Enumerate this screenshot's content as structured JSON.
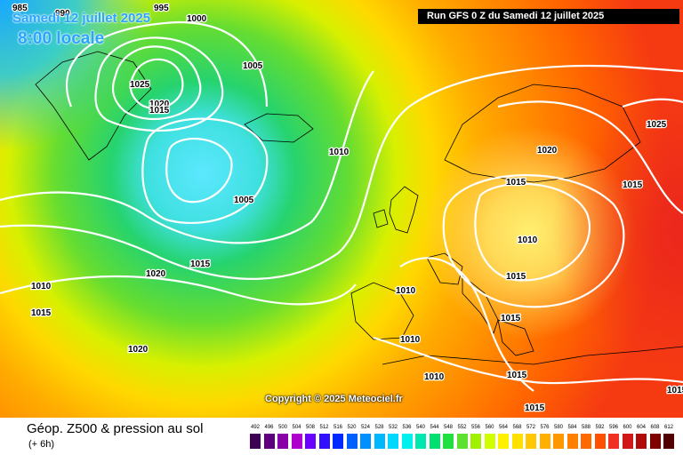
{
  "header": {
    "date": "Samedi 12 juillet 2025",
    "time": "8:00 locale",
    "run": "Run GFS 0 Z du Samedi 12 juillet 2025"
  },
  "footer": {
    "title": "Géop. Z500 & pression au sol",
    "subtitle": "(+ 6h)",
    "copyright": "Copyright © 2025 Meteociel.fr"
  },
  "isobar_labels": [
    "985",
    "990",
    "995",
    "1000",
    "1005",
    "1025",
    "1020",
    "1015",
    "1005",
    "1010",
    "1020",
    "1015",
    "1010",
    "1015",
    "1020",
    "1010",
    "1015",
    "1010",
    "1010",
    "1015",
    "1010",
    "1015",
    "1015",
    "1025",
    "1015",
    "1015",
    "1020",
    "1015"
  ],
  "legend": {
    "ticks": [
      "492",
      "496",
      "500",
      "504",
      "508",
      "512",
      "516",
      "520",
      "524",
      "528",
      "532",
      "536",
      "540",
      "544",
      "548",
      "552",
      "556",
      "560",
      "564",
      "568",
      "572",
      "576",
      "580",
      "584",
      "588",
      "592",
      "596",
      "600",
      "604",
      "608",
      "612"
    ],
    "colors": [
      "#3d0054",
      "#60007e",
      "#8a00a8",
      "#b000cf",
      "#6b00ff",
      "#3010ff",
      "#0028ff",
      "#0060ff",
      "#0090ff",
      "#00b8ff",
      "#00d8ff",
      "#00f0f0",
      "#00e8b0",
      "#00e070",
      "#20e040",
      "#60e030",
      "#a0f000",
      "#d0ff00",
      "#fff000",
      "#ffe000",
      "#ffc800",
      "#ffb000",
      "#ff9800",
      "#ff8000",
      "#ff6a00",
      "#ff5000",
      "#f03020",
      "#d01818",
      "#b00a0a",
      "#800000",
      "#500000"
    ]
  }
}
